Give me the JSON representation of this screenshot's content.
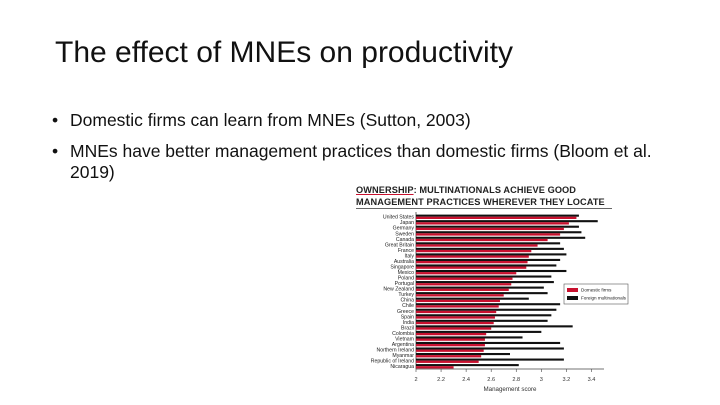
{
  "slide": {
    "title": "The effect of MNEs on productivity",
    "bullets": [
      "Domestic firms can learn from MNEs (Sutton, 2003)",
      "MNEs have better management practices than domestic firms (Bloom et al. 2019)"
    ],
    "bullet_glyph": "•"
  },
  "figure": {
    "title_highlight": "OWNERSHIP",
    "title_rest": ": MULTINATIONALS ACHIEVE GOOD MANAGEMENT PRACTICES WHEREVER THEY LOCATE",
    "accent_color": "#c8102e"
  },
  "chart_data": {
    "type": "bar",
    "orientation": "horizontal",
    "xlabel": "Management score",
    "xlim": [
      2,
      3.5
    ],
    "xticks": [
      "2",
      "2.2",
      "2.4",
      "2.6",
      "2.8",
      "3",
      "3.2",
      "3.4"
    ],
    "legend_placement": "right",
    "categories": [
      "United States",
      "Japan",
      "Germany",
      "Sweden",
      "Canada",
      "Great Britain",
      "France",
      "Italy",
      "Australia",
      "Singapore",
      "Mexico",
      "Poland",
      "Portugal",
      "New Zealand",
      "Turkey",
      "China",
      "Chile",
      "Greece",
      "Spain",
      "India",
      "Brazil",
      "Colombia",
      "Vietnam",
      "Argentina",
      "Northern Ireland",
      "Myanmar",
      "Republic of Ireland",
      "Nicaragua"
    ],
    "series": [
      {
        "name": "Domestic firms",
        "color": "#c8102e",
        "values": [
          3.28,
          3.22,
          3.18,
          3.15,
          3.05,
          2.97,
          2.92,
          2.9,
          2.89,
          2.88,
          2.8,
          2.77,
          2.76,
          2.74,
          2.7,
          2.67,
          2.66,
          2.64,
          2.63,
          2.62,
          2.6,
          2.56,
          2.55,
          2.55,
          2.54,
          2.52,
          2.5,
          2.3
        ]
      },
      {
        "name": "Foreign multinationals",
        "color": "#111111",
        "values": [
          3.3,
          3.45,
          3.3,
          3.32,
          3.35,
          3.15,
          3.18,
          3.2,
          3.15,
          3.12,
          3.2,
          3.08,
          3.1,
          3.02,
          3.05,
          2.9,
          3.15,
          3.12,
          3.08,
          3.05,
          3.25,
          3.0,
          2.85,
          3.15,
          3.18,
          2.75,
          3.18,
          2.82
        ]
      }
    ]
  }
}
